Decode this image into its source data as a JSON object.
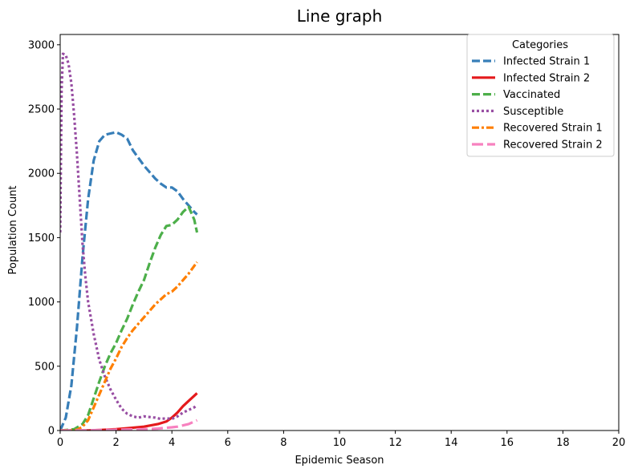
{
  "chart_data": {
    "type": "line",
    "title": "Line graph",
    "xlabel": "Epidemic Season",
    "ylabel": "Population Count",
    "xlim": [
      0,
      20
    ],
    "ylim": [
      0,
      3080
    ],
    "xticks": [
      0,
      2,
      4,
      6,
      8,
      10,
      12,
      14,
      16,
      18,
      20
    ],
    "yticks": [
      0,
      500,
      1000,
      1500,
      2000,
      2500,
      3000
    ],
    "grid": false,
    "legend": {
      "title": "Categories",
      "placement": "top-right"
    },
    "series": [
      {
        "name": "Infected Strain 1",
        "color": "#377eb8",
        "dash": "dashed",
        "points": [
          [
            0,
            0
          ],
          [
            0.2,
            100
          ],
          [
            0.4,
            350
          ],
          [
            0.6,
            800
          ],
          [
            0.8,
            1350
          ],
          [
            1.0,
            1800
          ],
          [
            1.2,
            2100
          ],
          [
            1.4,
            2250
          ],
          [
            1.6,
            2300
          ],
          [
            1.8,
            2310
          ],
          [
            2.0,
            2320
          ],
          [
            2.2,
            2300
          ],
          [
            2.4,
            2270
          ],
          [
            2.6,
            2180
          ],
          [
            2.8,
            2120
          ],
          [
            3.0,
            2060
          ],
          [
            3.2,
            2010
          ],
          [
            3.4,
            1960
          ],
          [
            3.6,
            1920
          ],
          [
            3.8,
            1890
          ],
          [
            4.0,
            1890
          ],
          [
            4.2,
            1860
          ],
          [
            4.4,
            1800
          ],
          [
            4.6,
            1750
          ],
          [
            4.8,
            1700
          ],
          [
            4.9,
            1680
          ]
        ]
      },
      {
        "name": "Infected Strain 2",
        "color": "#e41a1c",
        "dash": "solid",
        "points": [
          [
            0,
            0
          ],
          [
            1.0,
            0
          ],
          [
            1.5,
            5
          ],
          [
            2.0,
            10
          ],
          [
            2.5,
            20
          ],
          [
            3.0,
            30
          ],
          [
            3.5,
            50
          ],
          [
            3.8,
            70
          ],
          [
            4.0,
            100
          ],
          [
            4.2,
            140
          ],
          [
            4.4,
            190
          ],
          [
            4.6,
            230
          ],
          [
            4.8,
            270
          ],
          [
            4.9,
            290
          ]
        ]
      },
      {
        "name": "Vaccinated",
        "color": "#4daf4a",
        "dash": "dashed",
        "points": [
          [
            0,
            0
          ],
          [
            0.5,
            10
          ],
          [
            0.8,
            50
          ],
          [
            1.0,
            120
          ],
          [
            1.2,
            250
          ],
          [
            1.4,
            380
          ],
          [
            1.6,
            500
          ],
          [
            1.8,
            600
          ],
          [
            2.0,
            680
          ],
          [
            2.2,
            780
          ],
          [
            2.4,
            870
          ],
          [
            2.6,
            980
          ],
          [
            2.8,
            1080
          ],
          [
            3.0,
            1170
          ],
          [
            3.2,
            1300
          ],
          [
            3.4,
            1420
          ],
          [
            3.6,
            1520
          ],
          [
            3.8,
            1590
          ],
          [
            4.0,
            1600
          ],
          [
            4.2,
            1640
          ],
          [
            4.4,
            1700
          ],
          [
            4.6,
            1740
          ],
          [
            4.8,
            1640
          ],
          [
            4.9,
            1540
          ]
        ]
      },
      {
        "name": "Susceptible",
        "color": "#984ea3",
        "dash": "dotted",
        "points": [
          [
            0,
            1540
          ],
          [
            0.05,
            2650
          ],
          [
            0.1,
            2930
          ],
          [
            0.2,
            2920
          ],
          [
            0.3,
            2850
          ],
          [
            0.4,
            2700
          ],
          [
            0.5,
            2450
          ],
          [
            0.6,
            2150
          ],
          [
            0.7,
            1800
          ],
          [
            0.8,
            1450
          ],
          [
            0.9,
            1200
          ],
          [
            1.0,
            1000
          ],
          [
            1.2,
            750
          ],
          [
            1.4,
            550
          ],
          [
            1.6,
            420
          ],
          [
            1.8,
            320
          ],
          [
            2.0,
            240
          ],
          [
            2.2,
            170
          ],
          [
            2.4,
            130
          ],
          [
            2.6,
            110
          ],
          [
            2.8,
            100
          ],
          [
            3.0,
            110
          ],
          [
            3.2,
            105
          ],
          [
            3.4,
            100
          ],
          [
            3.6,
            90
          ],
          [
            3.8,
            95
          ],
          [
            4.0,
            90
          ],
          [
            4.2,
            110
          ],
          [
            4.4,
            140
          ],
          [
            4.6,
            160
          ],
          [
            4.8,
            180
          ],
          [
            4.9,
            200
          ]
        ]
      },
      {
        "name": "Recovered Strain 1",
        "color": "#ff7f00",
        "dash": "dashdot",
        "points": [
          [
            0,
            0
          ],
          [
            0.6,
            5
          ],
          [
            0.8,
            30
          ],
          [
            1.0,
            80
          ],
          [
            1.2,
            180
          ],
          [
            1.4,
            280
          ],
          [
            1.6,
            380
          ],
          [
            1.8,
            480
          ],
          [
            2.0,
            560
          ],
          [
            2.2,
            650
          ],
          [
            2.4,
            720
          ],
          [
            2.6,
            780
          ],
          [
            2.8,
            830
          ],
          [
            3.0,
            880
          ],
          [
            3.2,
            930
          ],
          [
            3.4,
            980
          ],
          [
            3.6,
            1020
          ],
          [
            3.8,
            1060
          ],
          [
            4.0,
            1080
          ],
          [
            4.2,
            1120
          ],
          [
            4.4,
            1170
          ],
          [
            4.6,
            1220
          ],
          [
            4.8,
            1280
          ],
          [
            4.9,
            1310
          ]
        ]
      },
      {
        "name": "Recovered Strain 2",
        "color": "#f781bf",
        "dash": "longdash",
        "points": [
          [
            0,
            0
          ],
          [
            1.0,
            2
          ],
          [
            1.5,
            4
          ],
          [
            2.0,
            6
          ],
          [
            2.5,
            8
          ],
          [
            3.0,
            10
          ],
          [
            3.5,
            15
          ],
          [
            4.0,
            25
          ],
          [
            4.2,
            30
          ],
          [
            4.4,
            40
          ],
          [
            4.6,
            50
          ],
          [
            4.8,
            70
          ],
          [
            4.9,
            80
          ]
        ]
      }
    ]
  }
}
